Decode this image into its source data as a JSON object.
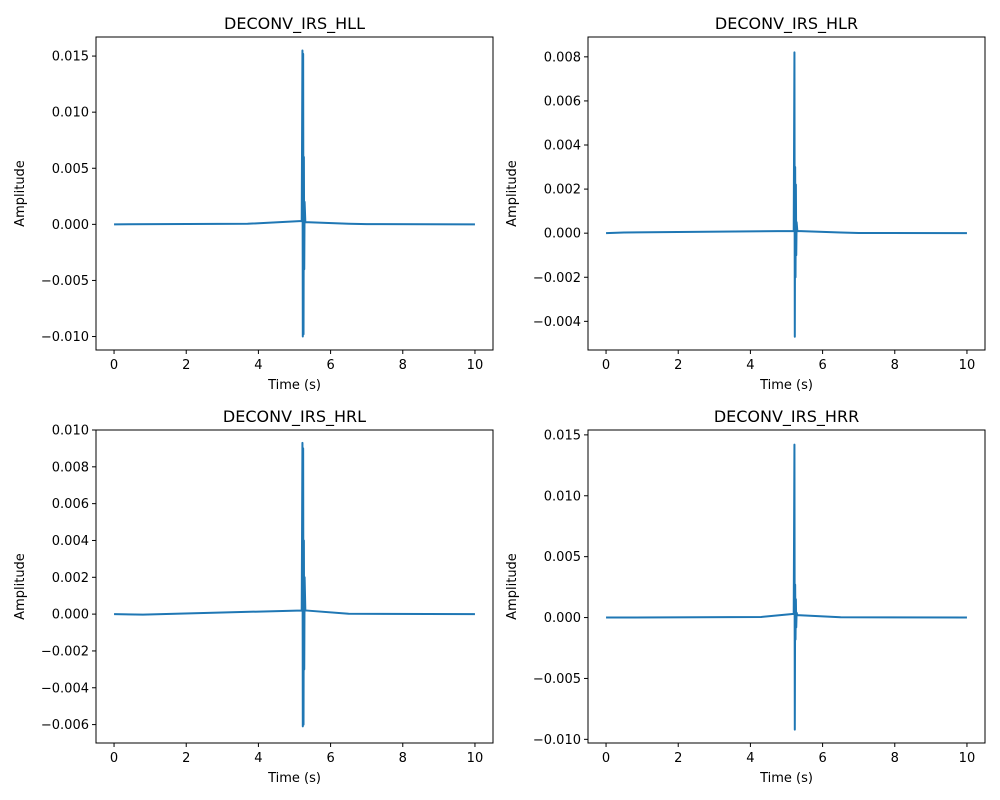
{
  "chart_data": [
    {
      "type": "line",
      "title": "DECONV_IRS_HLL",
      "xlabel": "Time (s)",
      "ylabel": "Amplitude",
      "xlim": [
        -0.5,
        10.5
      ],
      "ylim": [
        -0.0112,
        0.0167
      ],
      "xticks": [
        0,
        2,
        4,
        6,
        8,
        10
      ],
      "yticks": [
        -0.01,
        -0.005,
        0.0,
        0.005,
        0.01,
        0.015
      ],
      "ytick_labels": [
        "−0.010",
        "−0.005",
        "0.000",
        "0.005",
        "0.010",
        "0.015"
      ],
      "grid": false,
      "color": "#1f77b4",
      "series": [
        {
          "x": [
            0,
            3.7,
            5.2,
            5.22,
            5.23,
            5.24,
            5.25,
            5.26,
            5.27,
            5.28,
            5.3,
            6.5,
            7.0,
            10
          ],
          "y": [
            0,
            5e-05,
            0.0003,
            0.0155,
            -0.01,
            0.0152,
            -0.0098,
            0.006,
            -0.004,
            0.002,
            0.0002,
            5e-05,
            2e-05,
            0
          ]
        }
      ]
    },
    {
      "type": "line",
      "title": "DECONV_IRS_HLR",
      "xlabel": "Time (s)",
      "ylabel": "Amplitude",
      "xlim": [
        -0.5,
        10.5
      ],
      "ylim": [
        -0.0053,
        0.0089
      ],
      "xticks": [
        0,
        2,
        4,
        6,
        8,
        10
      ],
      "yticks": [
        -0.004,
        -0.002,
        0.0,
        0.002,
        0.004,
        0.006,
        0.008
      ],
      "ytick_labels": [
        "−0.004",
        "−0.002",
        "0.000",
        "0.002",
        "0.004",
        "0.006",
        "0.008"
      ],
      "grid": false,
      "color": "#1f77b4",
      "series": [
        {
          "x": [
            0,
            0.5,
            5.2,
            5.22,
            5.23,
            5.24,
            5.25,
            5.26,
            5.27,
            5.28,
            5.3,
            6.5,
            7.0,
            10
          ],
          "y": [
            0,
            3e-05,
            0.0001,
            0.0082,
            -0.0047,
            0.003,
            -0.002,
            0.0022,
            -0.001,
            0.0005,
            0.0001,
            3e-05,
            1e-05,
            0
          ]
        }
      ]
    },
    {
      "type": "line",
      "title": "DECONV_IRS_HRL",
      "xlabel": "Time (s)",
      "ylabel": "Amplitude",
      "xlim": [
        -0.5,
        10.5
      ],
      "ylim": [
        -0.007,
        0.01
      ],
      "xticks": [
        0,
        2,
        4,
        6,
        8,
        10
      ],
      "yticks": [
        -0.006,
        -0.004,
        -0.002,
        0.0,
        0.002,
        0.004,
        0.006,
        0.008,
        0.01
      ],
      "ytick_labels": [
        "−0.006",
        "−0.004",
        "−0.002",
        "0.000",
        "0.002",
        "0.004",
        "0.006",
        "0.008",
        "0.010"
      ],
      "grid": false,
      "color": "#1f77b4",
      "series": [
        {
          "x": [
            0,
            0.8,
            5.2,
            5.22,
            5.23,
            5.24,
            5.25,
            5.26,
            5.27,
            5.28,
            5.3,
            6.5,
            10
          ],
          "y": [
            0,
            -3e-05,
            0.0002,
            0.0093,
            -0.0061,
            0.009,
            -0.006,
            0.004,
            -0.003,
            0.002,
            0.0002,
            2e-05,
            0
          ]
        }
      ]
    },
    {
      "type": "line",
      "title": "DECONV_IRS_HRR",
      "xlabel": "Time (s)",
      "ylabel": "Amplitude",
      "xlim": [
        -0.5,
        10.5
      ],
      "ylim": [
        -0.0103,
        0.0154
      ],
      "xticks": [
        0,
        2,
        4,
        6,
        8,
        10
      ],
      "yticks": [
        -0.01,
        -0.005,
        0.0,
        0.005,
        0.01,
        0.015
      ],
      "ytick_labels": [
        "−0.010",
        "−0.005",
        "0.000",
        "0.005",
        "0.010",
        "0.015"
      ],
      "grid": false,
      "color": "#1f77b4",
      "series": [
        {
          "x": [
            0,
            4.3,
            5.2,
            5.22,
            5.23,
            5.24,
            5.25,
            5.26,
            5.27,
            5.28,
            5.3,
            6.5,
            10
          ],
          "y": [
            0,
            5e-05,
            0.0003,
            0.0142,
            -0.0092,
            0.0027,
            -0.0018,
            0.0015,
            -0.0008,
            0.0004,
            0.0002,
            3e-05,
            0
          ]
        }
      ]
    }
  ]
}
